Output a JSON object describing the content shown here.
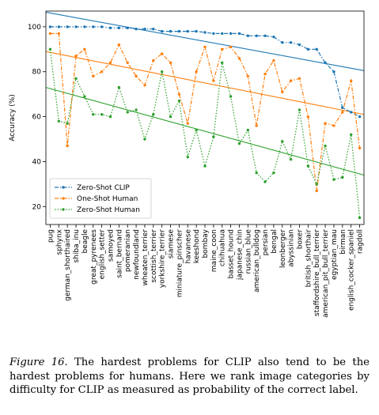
{
  "caption": {
    "figure_label": "Figure 16.",
    "text": "The hardest problems for CLIP also tend to be the hardest problems for humans. Here we rank image categories by difficulty for CLIP as measured as probability of the correct label."
  },
  "colors": {
    "clip": "#1f77b4",
    "one_shot": "#ff7f0e",
    "zero_shot": "#2ca02c"
  },
  "chart_data": {
    "type": "line",
    "ylabel": "Accuracy (%)",
    "xlabel": "",
    "ylim": [
      12,
      107
    ],
    "yticks": [
      20,
      40,
      60,
      80,
      100
    ],
    "grid": false,
    "legend": "lower-left",
    "categories": [
      "pug",
      "sphynx",
      "german_shorthaired",
      "shiba_inu",
      "beagle",
      "great_pyrenees",
      "english_setter",
      "samoyed",
      "saint_bernard",
      "pomeranian",
      "newfoundland",
      "wheaten_terrier",
      "scottish_terrier",
      "yorkshire_terrier",
      "siamese",
      "miniature_pinscher",
      "havanese",
      "keeshond",
      "bombay",
      "maine_coon",
      "chihuahua",
      "basset_hound",
      "japanese_chin",
      "russian_blue",
      "american_bulldog",
      "persian",
      "bengal",
      "leonberger",
      "abyssinian",
      "boxer",
      "british_shorthair",
      "staffordshire_bull_terrier",
      "american_pit_bull_terrier",
      "egyptian_mau",
      "birman",
      "english_cocker_spaniel",
      "ragdoll"
    ],
    "series": [
      {
        "name": "Zero-Shot CLIP",
        "style": "dashdot",
        "values": [
          100,
          100,
          100,
          100,
          100,
          100,
          100,
          99.5,
          99.5,
          99.5,
          99,
          99,
          99,
          98,
          98,
          98,
          98,
          98,
          97.5,
          97,
          97,
          97,
          97,
          96,
          96,
          96,
          95.5,
          93,
          93,
          92,
          90,
          90,
          84,
          80,
          64,
          62,
          60
        ]
      },
      {
        "name": "One-Shot Human",
        "style": "dashdot",
        "values": [
          97,
          97,
          47,
          87,
          90,
          78,
          80,
          84,
          92,
          84,
          78,
          74,
          85,
          88,
          84,
          70,
          57,
          80,
          91,
          76,
          90,
          91,
          86,
          78,
          56,
          79,
          85,
          71,
          76,
          77,
          60,
          27,
          57,
          56,
          62,
          76,
          46
        ]
      },
      {
        "name": "Zero-Shot Human",
        "style": "dotted",
        "values": [
          90,
          58,
          57,
          77,
          69,
          61,
          61,
          60,
          73,
          62,
          63,
          50,
          61,
          80,
          60,
          67,
          42,
          54,
          38,
          51,
          84,
          69,
          48,
          54,
          35,
          31,
          35,
          49,
          41,
          63,
          38,
          30,
          47,
          32,
          33,
          52,
          15
        ]
      }
    ],
    "trend_lines": [
      {
        "name": "Zero-Shot CLIP",
        "start": 106.5,
        "end": 80.5
      },
      {
        "name": "One-Shot Human",
        "start": 89,
        "end": 61
      },
      {
        "name": "Zero-Shot Human",
        "start": 73,
        "end": 34
      }
    ]
  }
}
